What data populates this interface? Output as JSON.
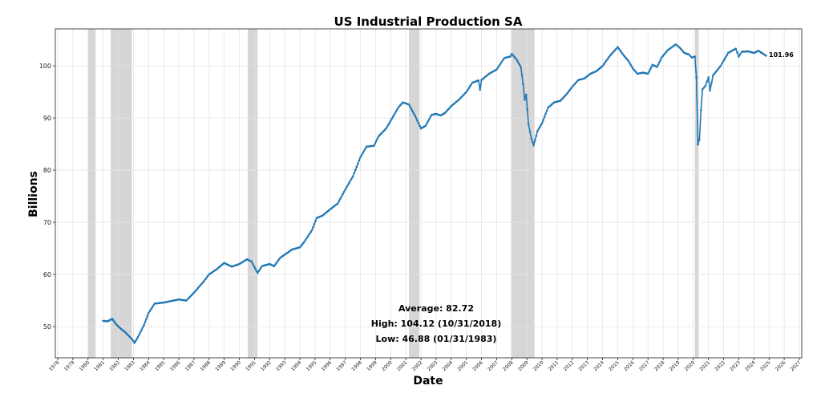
{
  "chart_data": {
    "type": "line",
    "title": "US Industrial Production SA",
    "xlabel": "Date",
    "ylabel": "Billions",
    "xlim": [
      1977.84,
      2027.16
    ],
    "ylim": [
      44.0,
      107.1
    ],
    "grid": true,
    "x_ticks": [
      1978,
      1979,
      1980,
      1981,
      1982,
      1983,
      1984,
      1985,
      1986,
      1987,
      1988,
      1989,
      1990,
      1991,
      1992,
      1993,
      1994,
      1995,
      1996,
      1997,
      1998,
      1999,
      2000,
      2001,
      2002,
      2003,
      2004,
      2005,
      2006,
      2007,
      2008,
      2009,
      2010,
      2011,
      2012,
      2013,
      2014,
      2015,
      2016,
      2017,
      2018,
      2019,
      2020,
      2021,
      2022,
      2023,
      2024,
      2025,
      2026,
      2027
    ],
    "y_ticks": [
      50,
      60,
      70,
      80,
      90,
      100
    ],
    "recessions": [
      [
        1980.0,
        1980.5
      ],
      [
        1981.5,
        1982.9
      ],
      [
        1990.55,
        1991.2
      ],
      [
        2001.2,
        2001.9
      ],
      [
        2007.95,
        2009.5
      ],
      [
        2020.1,
        2020.35
      ]
    ],
    "series": [
      {
        "name": "US Industrial Production SA",
        "color": "#1f77b4",
        "points": [
          [
            1981.0,
            51.1
          ],
          [
            1981.3,
            51.0
          ],
          [
            1981.6,
            51.5
          ],
          [
            1981.9,
            50.3
          ],
          [
            1982.2,
            49.5
          ],
          [
            1982.5,
            48.8
          ],
          [
            1982.9,
            47.6
          ],
          [
            1983.08,
            46.88
          ],
          [
            1983.3,
            48.0
          ],
          [
            1983.7,
            50.3
          ],
          [
            1984.0,
            52.6
          ],
          [
            1984.4,
            54.4
          ],
          [
            1985.0,
            54.6
          ],
          [
            1986.0,
            55.2
          ],
          [
            1986.5,
            55.0
          ],
          [
            1987.0,
            56.5
          ],
          [
            1987.6,
            58.5
          ],
          [
            1988.0,
            60.0
          ],
          [
            1988.5,
            61.0
          ],
          [
            1989.0,
            62.2
          ],
          [
            1989.5,
            61.5
          ],
          [
            1990.0,
            62.0
          ],
          [
            1990.5,
            62.9
          ],
          [
            1990.8,
            62.5
          ],
          [
            1991.2,
            60.3
          ],
          [
            1991.5,
            61.6
          ],
          [
            1992.0,
            62.0
          ],
          [
            1992.3,
            61.6
          ],
          [
            1992.7,
            63.2
          ],
          [
            1993.0,
            63.8
          ],
          [
            1993.5,
            64.8
          ],
          [
            1994.0,
            65.2
          ],
          [
            1994.3,
            66.3
          ],
          [
            1994.8,
            68.5
          ],
          [
            1995.1,
            70.8
          ],
          [
            1995.5,
            71.3
          ],
          [
            1996.0,
            72.5
          ],
          [
            1996.5,
            73.6
          ],
          [
            1997.0,
            76.3
          ],
          [
            1997.5,
            78.8
          ],
          [
            1998.0,
            82.5
          ],
          [
            1998.4,
            84.5
          ],
          [
            1998.9,
            84.7
          ],
          [
            1999.2,
            86.5
          ],
          [
            1999.7,
            88.0
          ],
          [
            2000.0,
            89.5
          ],
          [
            2000.5,
            92.0
          ],
          [
            2000.8,
            93.0
          ],
          [
            2001.2,
            92.6
          ],
          [
            2001.6,
            90.5
          ],
          [
            2002.0,
            88.0
          ],
          [
            2002.3,
            88.5
          ],
          [
            2002.7,
            90.6
          ],
          [
            2003.0,
            90.8
          ],
          [
            2003.3,
            90.5
          ],
          [
            2003.6,
            91.0
          ],
          [
            2004.0,
            92.3
          ],
          [
            2004.5,
            93.5
          ],
          [
            2005.0,
            95.0
          ],
          [
            2005.4,
            96.8
          ],
          [
            2005.8,
            97.2
          ],
          [
            2005.9,
            95.4
          ],
          [
            2006.0,
            97.3
          ],
          [
            2006.5,
            98.5
          ],
          [
            2007.0,
            99.3
          ],
          [
            2007.5,
            101.5
          ],
          [
            2007.9,
            101.8
          ],
          [
            2008.0,
            102.3
          ],
          [
            2008.3,
            101.3
          ],
          [
            2008.6,
            99.8
          ],
          [
            2008.75,
            96.5
          ],
          [
            2008.85,
            93.5
          ],
          [
            2008.95,
            94.5
          ],
          [
            2009.1,
            88.8
          ],
          [
            2009.3,
            86.0
          ],
          [
            2009.45,
            84.8
          ],
          [
            2009.7,
            87.5
          ],
          [
            2010.0,
            89.0
          ],
          [
            2010.4,
            92.0
          ],
          [
            2010.8,
            93.0
          ],
          [
            2011.2,
            93.3
          ],
          [
            2011.6,
            94.5
          ],
          [
            2012.0,
            96.0
          ],
          [
            2012.4,
            97.3
          ],
          [
            2012.8,
            97.6
          ],
          [
            2013.2,
            98.5
          ],
          [
            2013.6,
            99.0
          ],
          [
            2014.0,
            100.0
          ],
          [
            2014.5,
            102.0
          ],
          [
            2014.9,
            103.3
          ],
          [
            2015.0,
            103.6
          ],
          [
            2015.4,
            102.0
          ],
          [
            2015.7,
            101.0
          ],
          [
            2016.0,
            99.5
          ],
          [
            2016.3,
            98.5
          ],
          [
            2016.7,
            98.7
          ],
          [
            2017.0,
            98.5
          ],
          [
            2017.3,
            100.2
          ],
          [
            2017.6,
            99.8
          ],
          [
            2017.9,
            101.6
          ],
          [
            2018.3,
            103.0
          ],
          [
            2018.83,
            104.12
          ],
          [
            2019.1,
            103.5
          ],
          [
            2019.4,
            102.5
          ],
          [
            2019.7,
            102.2
          ],
          [
            2019.9,
            101.6
          ],
          [
            2020.1,
            101.8
          ],
          [
            2020.2,
            97.8
          ],
          [
            2020.3,
            84.9
          ],
          [
            2020.4,
            85.9
          ],
          [
            2020.5,
            91.5
          ],
          [
            2020.6,
            95.5
          ],
          [
            2020.8,
            96.2
          ],
          [
            2021.0,
            97.8
          ],
          [
            2021.1,
            95.3
          ],
          [
            2021.3,
            98.2
          ],
          [
            2021.8,
            100.0
          ],
          [
            2022.0,
            101.0
          ],
          [
            2022.3,
            102.5
          ],
          [
            2022.8,
            103.3
          ],
          [
            2023.0,
            101.8
          ],
          [
            2023.2,
            102.7
          ],
          [
            2023.6,
            102.8
          ],
          [
            2024.0,
            102.5
          ],
          [
            2024.3,
            102.9
          ],
          [
            2024.8,
            101.96
          ]
        ]
      }
    ],
    "last_value_label": "101.96",
    "annotations": {
      "average": "Average: 82.72",
      "high": "High: 104.12 (10/31/2018)",
      "low": "Low: 46.88 (01/31/1983)"
    }
  }
}
